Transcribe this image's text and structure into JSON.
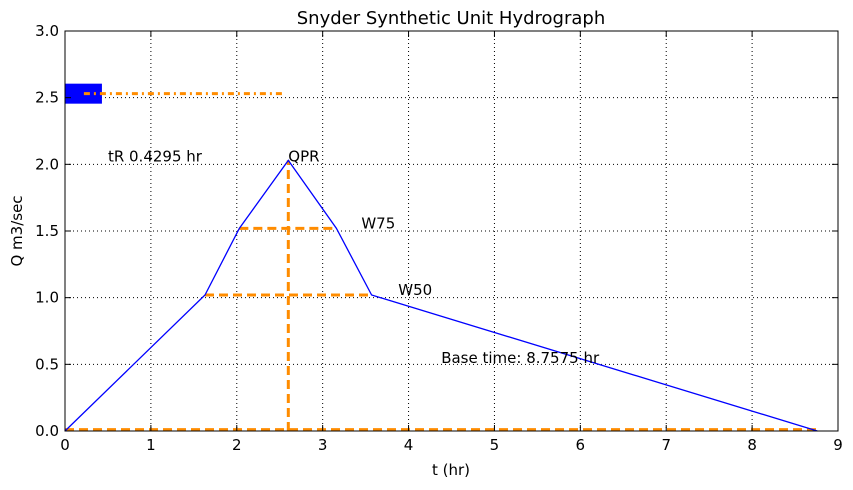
{
  "chart_data": {
    "type": "line",
    "title": "Snyder Synthetic Unit Hydrograph",
    "xlabel": "t (hr)",
    "ylabel": "Q m3/sec",
    "xlim": [
      0,
      9
    ],
    "ylim": [
      0,
      3
    ],
    "xticks": [
      0,
      1,
      2,
      3,
      4,
      5,
      6,
      7,
      8,
      9
    ],
    "yticks": [
      0.0,
      0.5,
      1.0,
      1.5,
      2.0,
      2.5,
      3.0
    ],
    "xtick_labels": [
      "0",
      "1",
      "2",
      "3",
      "4",
      "5",
      "6",
      "7",
      "8",
      "9"
    ],
    "ytick_labels": [
      "0.0",
      "0.5",
      "1.0",
      "1.5",
      "2.0",
      "2.5",
      "3.0"
    ],
    "grid": true,
    "grid_style": "dotted",
    "colors": {
      "hydrograph": "#0000ff",
      "construction": "#ff8c00",
      "rainfall_bar": "#0000ff"
    },
    "hydrograph": {
      "x": [
        0,
        1.63,
        2.03,
        2.6,
        3.16,
        3.57,
        8.76
      ],
      "y": [
        0,
        1.02,
        1.52,
        2.03,
        1.52,
        1.02,
        0
      ]
    },
    "rainfall_bar": {
      "x_start": 0,
      "x_end": 0.43,
      "y": 2.53
    },
    "construction_lines": [
      {
        "x": [
          0.22,
          2.56
        ],
        "y": [
          2.53,
          2.53
        ],
        "style": "dashdot"
      },
      {
        "x": [
          2.6,
          2.6
        ],
        "y": [
          0,
          2.03
        ],
        "style": "dashed"
      },
      {
        "x": [
          2.03,
          3.16
        ],
        "y": [
          1.52,
          1.52
        ],
        "style": "dashed"
      },
      {
        "x": [
          1.63,
          3.57
        ],
        "y": [
          1.02,
          1.02
        ],
        "style": "dashed"
      },
      {
        "x": [
          0,
          8.76
        ],
        "y": [
          0.01,
          0.01
        ],
        "style": "dashed"
      }
    ],
    "annotations": [
      {
        "text": "tR  0.4295  hr",
        "x": 0.5,
        "y": 2.02
      },
      {
        "text": "QPR",
        "x": 2.6,
        "y": 2.02
      },
      {
        "text": "W75",
        "x": 3.45,
        "y": 1.52
      },
      {
        "text": "W50",
        "x": 3.88,
        "y": 1.02
      },
      {
        "text": "Base time: 8.7575 hr",
        "x": 4.38,
        "y": 0.51
      }
    ]
  }
}
